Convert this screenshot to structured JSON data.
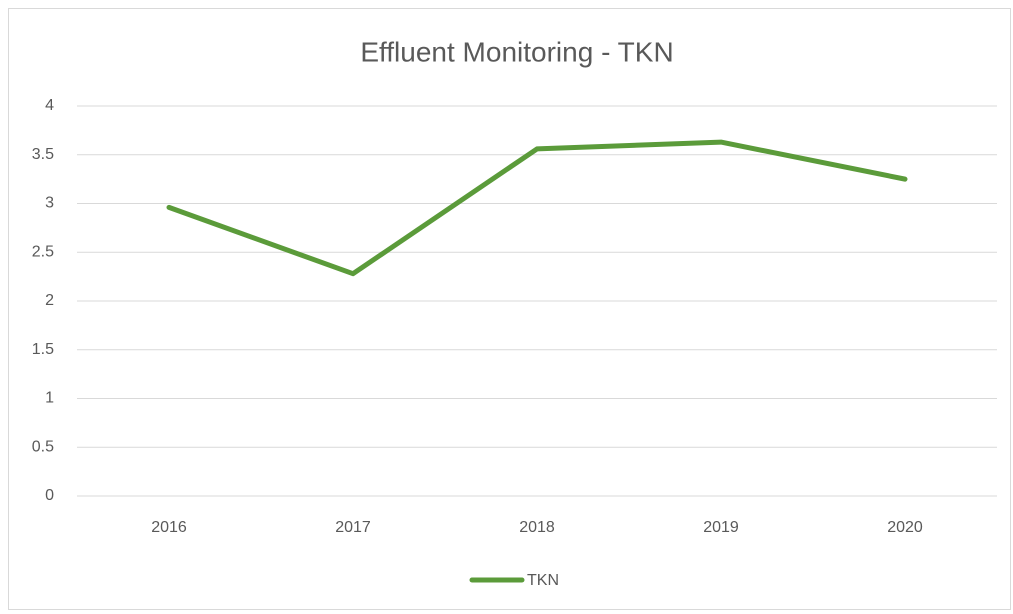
{
  "chart_data": {
    "type": "line",
    "title": "Effluent Monitoring - TKN",
    "categories": [
      "2016",
      "2017",
      "2018",
      "2019",
      "2020"
    ],
    "series": [
      {
        "name": "TKN",
        "color": "#5b9b3a",
        "values": [
          2.96,
          2.28,
          3.56,
          3.63,
          3.25
        ]
      }
    ],
    "ylim": [
      0,
      4
    ],
    "yticks": [
      0,
      0.5,
      1,
      1.5,
      2,
      2.5,
      3,
      3.5,
      4
    ],
    "grid": true,
    "legend": "bottom"
  }
}
